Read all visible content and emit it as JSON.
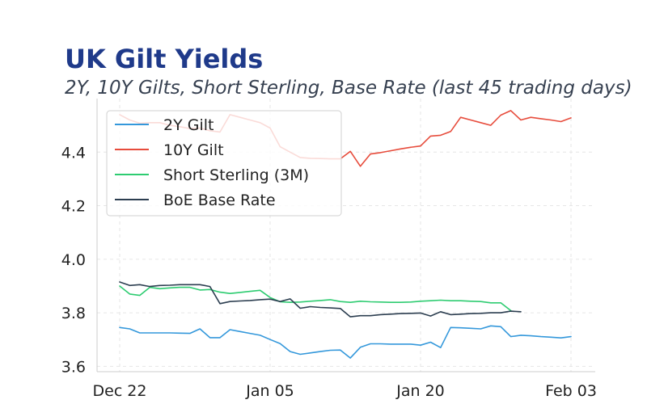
{
  "chart_data": {
    "type": "line",
    "title": "UK Gilt Yields",
    "subtitle": "2Y, 10Y Gilts, Short Sterling, Base Rate (last 45 trading days)",
    "xlabel": "",
    "ylabel": "",
    "ylim": [
      3.58,
      4.6
    ],
    "yticks": [
      3.6,
      3.8,
      4.0,
      4.2,
      4.4
    ],
    "xticks": [
      {
        "index": 0,
        "label": "Dec 22"
      },
      {
        "index": 15,
        "label": "Jan 05"
      },
      {
        "index": 30,
        "label": "Jan 20"
      },
      {
        "index": 45,
        "label": "Feb 03"
      }
    ],
    "grid": true,
    "legend": "top-left",
    "series": [
      {
        "name": "2Y Gilt",
        "color": "#3498db",
        "values": [
          3.745,
          3.74,
          3.725,
          3.725,
          3.725,
          3.725,
          3.724,
          3.723,
          3.74,
          3.707,
          3.707,
          3.737,
          3.73,
          3.723,
          3.716,
          3.7,
          3.685,
          3.655,
          3.645,
          3.65,
          3.655,
          3.66,
          3.661,
          3.631,
          3.671,
          3.684,
          3.684,
          3.683,
          3.683,
          3.683,
          3.679,
          3.69,
          3.67,
          3.745,
          3.744,
          3.742,
          3.74,
          3.751,
          3.748,
          3.711,
          3.716,
          3.714,
          3.711,
          3.709,
          3.706,
          3.711
        ]
      },
      {
        "name": "10Y Gilt",
        "color": "#e74c3c",
        "values": [
          4.54,
          4.52,
          4.508,
          4.51,
          4.51,
          4.5,
          4.495,
          4.488,
          4.49,
          4.48,
          4.475,
          4.54,
          4.53,
          4.52,
          4.51,
          4.49,
          4.42,
          4.4,
          4.38,
          4.377,
          4.376,
          4.375,
          4.375,
          4.403,
          4.347,
          4.393,
          4.398,
          4.405,
          4.412,
          4.418,
          4.423,
          4.46,
          4.463,
          4.477,
          4.53,
          4.52,
          4.51,
          4.5,
          4.538,
          4.555,
          4.52,
          4.53,
          4.525,
          4.52,
          4.514,
          4.528
        ]
      },
      {
        "name": "Short Sterling (3M)",
        "color": "#2ecc71",
        "values": [
          3.9,
          3.87,
          3.865,
          3.895,
          3.89,
          3.893,
          3.895,
          3.895,
          3.885,
          3.887,
          3.877,
          3.872,
          3.876,
          3.88,
          3.884,
          3.857,
          3.841,
          3.839,
          3.84,
          3.843,
          3.846,
          3.849,
          3.842,
          3.839,
          3.843,
          3.841,
          3.84,
          3.839,
          3.839,
          3.84,
          3.843,
          3.845,
          3.847,
          3.845,
          3.845,
          3.843,
          3.842,
          3.837,
          3.837,
          3.808
        ]
      },
      {
        "name": "BoE Base Rate",
        "color": "#2c3e50",
        "values": [
          3.915,
          3.902,
          3.905,
          3.898,
          3.902,
          3.903,
          3.905,
          3.905,
          3.905,
          3.898,
          3.834,
          3.842,
          3.844,
          3.846,
          3.849,
          3.851,
          3.842,
          3.852,
          3.817,
          3.823,
          3.82,
          3.818,
          3.816,
          3.785,
          3.789,
          3.789,
          3.793,
          3.795,
          3.797,
          3.798,
          3.799,
          3.788,
          3.804,
          3.793,
          3.795,
          3.797,
          3.798,
          3.8,
          3.8,
          3.806,
          3.804
        ]
      }
    ]
  }
}
